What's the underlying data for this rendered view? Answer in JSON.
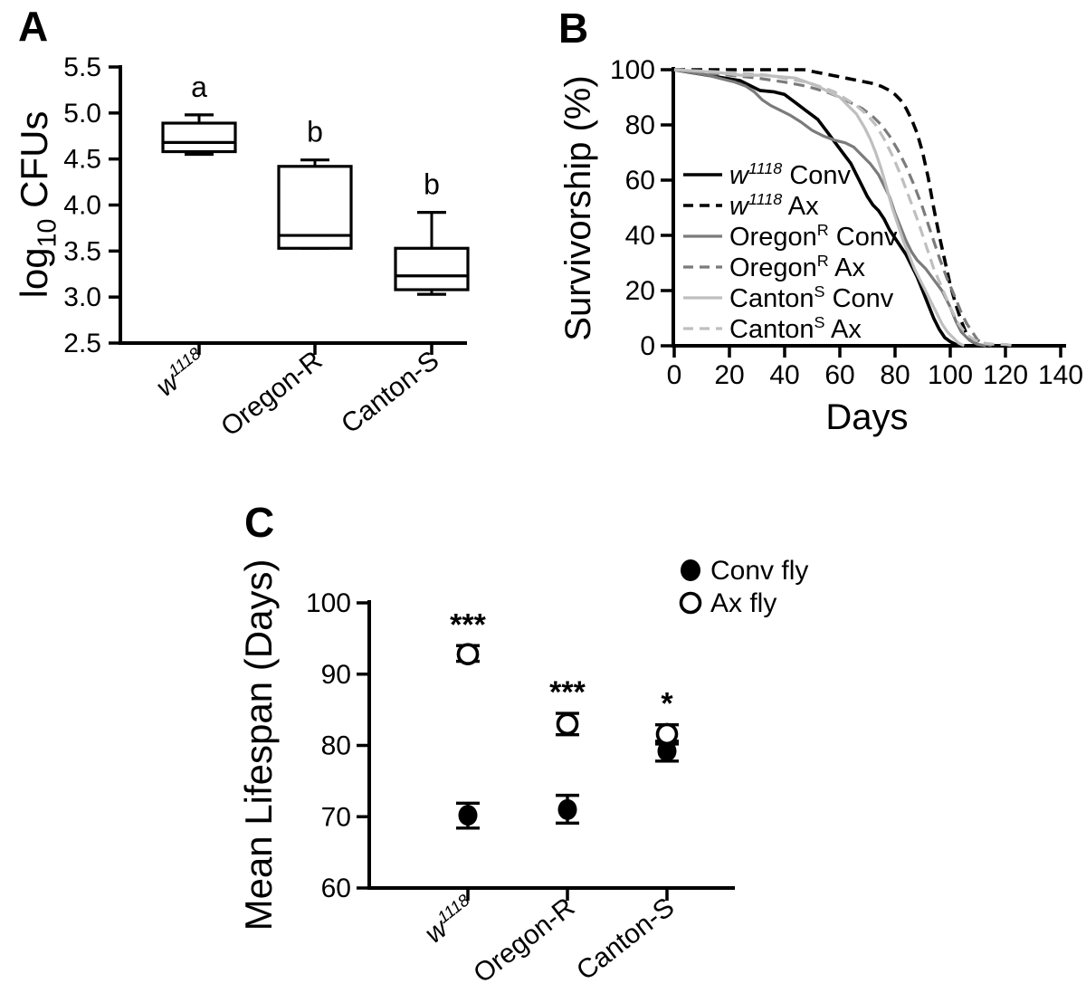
{
  "figure": {
    "background": "#ffffff",
    "panel_labels": {
      "a": "A",
      "b": "B",
      "c": "C"
    }
  },
  "colors": {
    "black": "#000000",
    "dark_gray": "#7b7b7b",
    "light_gray": "#bfbfbf"
  },
  "strains": [
    {
      "name": "w1118",
      "parts": [
        {
          "t": "w",
          "i": true
        },
        {
          "t": "1118",
          "i": true,
          "sup": true
        }
      ]
    },
    {
      "name": "Oregon-R",
      "parts": [
        {
          "t": "Oregon-R"
        }
      ]
    },
    {
      "name": "Canton-S",
      "parts": [
        {
          "t": "Canton-S"
        }
      ]
    }
  ],
  "chart_data": [
    {
      "id": "panel-a",
      "type": "box",
      "ylabel_parts": [
        {
          "t": "log"
        },
        {
          "t": "10",
          "sub": true
        },
        {
          "t": " CFUs"
        }
      ],
      "ylim": [
        2.5,
        5.5
      ],
      "yticks": [
        5.5,
        5.0,
        4.5,
        4.0,
        3.5,
        3.0,
        2.5
      ],
      "grid": false,
      "boxes": [
        {
          "strain": 0,
          "low": 4.55,
          "q1": 4.58,
          "median": 4.68,
          "q3": 4.89,
          "high": 4.98,
          "sig": "a"
        },
        {
          "strain": 1,
          "low": 3.53,
          "q1": 3.53,
          "median": 3.67,
          "q3": 4.42,
          "high": 4.49,
          "sig": "b"
        },
        {
          "strain": 2,
          "low": 3.03,
          "q1": 3.08,
          "median": 3.23,
          "q3": 3.53,
          "high": 3.92,
          "sig": "b"
        }
      ]
    },
    {
      "id": "panel-b",
      "type": "line",
      "ylabel": "Survivorship (%)",
      "xlabel": "Days",
      "xlim": [
        0,
        140
      ],
      "xticks": [
        0,
        20,
        40,
        60,
        80,
        100,
        120,
        140
      ],
      "ylim": [
        0,
        100
      ],
      "yticks": [
        0,
        20,
        40,
        60,
        80,
        100
      ],
      "grid": false,
      "legend_position": "inside-left",
      "series": [
        {
          "name_parts": [
            {
              "t": "w",
              "i": true
            },
            {
              "t": "1118",
              "i": true,
              "sup": true
            },
            {
              "t": " Conv"
            }
          ],
          "color": "black",
          "dash": false,
          "points": [
            [
              0,
              100
            ],
            [
              6,
              99
            ],
            [
              12,
              98
            ],
            [
              18,
              97
            ],
            [
              24,
              96
            ],
            [
              28,
              94
            ],
            [
              31,
              92.5
            ],
            [
              36,
              92
            ],
            [
              40,
              91
            ],
            [
              44,
              88
            ],
            [
              48,
              85
            ],
            [
              52,
              82
            ],
            [
              55,
              78
            ],
            [
              58,
              74
            ],
            [
              61,
              70
            ],
            [
              64,
              66
            ],
            [
              66,
              62
            ],
            [
              68,
              58
            ],
            [
              70,
              54
            ],
            [
              72,
              51
            ],
            [
              74,
              49
            ],
            [
              76,
              46
            ],
            [
              78,
              42
            ],
            [
              80,
              39
            ],
            [
              82,
              36
            ],
            [
              84,
              33
            ],
            [
              86,
              29
            ],
            [
              88,
              25
            ],
            [
              90,
              20
            ],
            [
              92,
              15
            ],
            [
              94,
              10
            ],
            [
              96,
              6
            ],
            [
              98,
              3
            ],
            [
              100,
              1.5
            ],
            [
              102,
              0.5
            ],
            [
              104,
              0
            ]
          ]
        },
        {
          "name_parts": [
            {
              "t": "w",
              "i": true
            },
            {
              "t": "1118",
              "i": true,
              "sup": true
            },
            {
              "t": " Ax"
            }
          ],
          "color": "black",
          "dash": true,
          "points": [
            [
              0,
              100
            ],
            [
              10,
              100
            ],
            [
              20,
              100
            ],
            [
              30,
              100
            ],
            [
              40,
              100
            ],
            [
              47,
              100
            ],
            [
              52,
              99
            ],
            [
              57,
              98
            ],
            [
              62,
              97
            ],
            [
              67,
              96
            ],
            [
              72,
              95
            ],
            [
              75,
              94
            ],
            [
              78,
              92.5
            ],
            [
              80,
              91
            ],
            [
              82,
              89
            ],
            [
              84,
              86
            ],
            [
              86,
              82
            ],
            [
              88,
              77
            ],
            [
              90,
              70
            ],
            [
              92,
              61
            ],
            [
              94,
              50
            ],
            [
              96,
              40
            ],
            [
              98,
              31
            ],
            [
              100,
              22
            ],
            [
              102,
              15
            ],
            [
              104,
              9
            ],
            [
              106,
              4
            ],
            [
              108,
              1.5
            ],
            [
              110,
              0.5
            ],
            [
              112,
              0
            ]
          ]
        },
        {
          "name_parts": [
            {
              "t": "Oregon"
            },
            {
              "t": "R",
              "sup": true
            },
            {
              "t": " Conv"
            }
          ],
          "color": "dark_gray",
          "dash": false,
          "points": [
            [
              0,
              100
            ],
            [
              6,
              99
            ],
            [
              12,
              98
            ],
            [
              18,
              96.5
            ],
            [
              22,
              95.5
            ],
            [
              26,
              94
            ],
            [
              29,
              92
            ],
            [
              32,
              89
            ],
            [
              35,
              87
            ],
            [
              38,
              85.5
            ],
            [
              42,
              83.5
            ],
            [
              46,
              81
            ],
            [
              50,
              78
            ],
            [
              54,
              76
            ],
            [
              58,
              74.5
            ],
            [
              62,
              73.5
            ],
            [
              65,
              72
            ],
            [
              68,
              69
            ],
            [
              71,
              66
            ],
            [
              74,
              62
            ],
            [
              76,
              58
            ],
            [
              78,
              54
            ],
            [
              80,
              48
            ],
            [
              82,
              43
            ],
            [
              84,
              38
            ],
            [
              86,
              34
            ],
            [
              88,
              31
            ],
            [
              91,
              28
            ],
            [
              94,
              24
            ],
            [
              97,
              20
            ],
            [
              100,
              14
            ],
            [
              102,
              9
            ],
            [
              104,
              5
            ],
            [
              107,
              2
            ],
            [
              110,
              0.5
            ],
            [
              113,
              0
            ]
          ]
        },
        {
          "name_parts": [
            {
              "t": "Oregon"
            },
            {
              "t": "R",
              "sup": true
            },
            {
              "t": " Ax"
            }
          ],
          "color": "dark_gray",
          "dash": true,
          "points": [
            [
              0,
              100
            ],
            [
              10,
              99
            ],
            [
              20,
              98
            ],
            [
              30,
              97
            ],
            [
              40,
              95.5
            ],
            [
              48,
              94
            ],
            [
              55,
              92
            ],
            [
              60,
              90
            ],
            [
              64,
              88
            ],
            [
              68,
              86
            ],
            [
              72,
              83
            ],
            [
              75,
              80
            ],
            [
              78,
              76
            ],
            [
              81,
              71
            ],
            [
              84,
              65
            ],
            [
              87,
              58
            ],
            [
              90,
              50
            ],
            [
              93,
              41
            ],
            [
              96,
              32
            ],
            [
              99,
              24
            ],
            [
              102,
              17
            ],
            [
              104,
              12
            ],
            [
              106,
              8
            ],
            [
              108,
              5
            ],
            [
              110,
              2
            ],
            [
              113,
              0.5
            ],
            [
              115,
              0
            ]
          ]
        },
        {
          "name_parts": [
            {
              "t": "Canton"
            },
            {
              "t": "S",
              "sup": true
            },
            {
              "t": " Conv"
            }
          ],
          "color": "light_gray",
          "dash": false,
          "points": [
            [
              0,
              100
            ],
            [
              8,
              99.5
            ],
            [
              16,
              99
            ],
            [
              24,
              98
            ],
            [
              32,
              98
            ],
            [
              38,
              97.5
            ],
            [
              44,
              97
            ],
            [
              48,
              95.5
            ],
            [
              52,
              94
            ],
            [
              56,
              92
            ],
            [
              60,
              90
            ],
            [
              63,
              87
            ],
            [
              66,
              84
            ],
            [
              69,
              79
            ],
            [
              71,
              75
            ],
            [
              73,
              70
            ],
            [
              75,
              64
            ],
            [
              77,
              57
            ],
            [
              79,
              50
            ],
            [
              81,
              44
            ],
            [
              83,
              38
            ],
            [
              85,
              33
            ],
            [
              87,
              28
            ],
            [
              89,
              24
            ],
            [
              91,
              20
            ],
            [
              93,
              16
            ],
            [
              95,
              12
            ],
            [
              97,
              8
            ],
            [
              99,
              5
            ],
            [
              101,
              3
            ],
            [
              103,
              1
            ],
            [
              105,
              0
            ]
          ]
        },
        {
          "name_parts": [
            {
              "t": "Canton"
            },
            {
              "t": "S",
              "sup": true
            },
            {
              "t": " Ax"
            }
          ],
          "color": "light_gray",
          "dash": true,
          "points": [
            [
              0,
              100
            ],
            [
              10,
              99.5
            ],
            [
              20,
              99
            ],
            [
              28,
              98.5
            ],
            [
              34,
              98
            ],
            [
              42,
              96.5
            ],
            [
              48,
              95.5
            ],
            [
              54,
              93.5
            ],
            [
              58,
              92
            ],
            [
              62,
              89.5
            ],
            [
              66,
              87
            ],
            [
              70,
              83.5
            ],
            [
              73,
              80
            ],
            [
              76,
              75
            ],
            [
              79,
              69
            ],
            [
              82,
              62
            ],
            [
              85,
              54
            ],
            [
              88,
              46
            ],
            [
              91,
              37
            ],
            [
              94,
              28
            ],
            [
              97,
              21
            ],
            [
              100,
              14
            ],
            [
              103,
              8
            ],
            [
              106,
              4
            ],
            [
              109,
              2
            ],
            [
              112,
              1
            ],
            [
              116,
              0.5
            ],
            [
              120,
              0.5
            ],
            [
              123,
              0
            ]
          ]
        }
      ]
    },
    {
      "id": "panel-c",
      "type": "scatter",
      "ylabel": "Mean Lifespan (Days)",
      "ylim": [
        60,
        100
      ],
      "yticks": [
        100,
        90,
        80,
        70,
        60
      ],
      "grid": false,
      "legend": [
        {
          "label": "Conv fly",
          "marker": "filled-circle"
        },
        {
          "label": "Ax fly",
          "marker": "open-circle"
        }
      ],
      "groups": [
        {
          "strain": 0,
          "conv": {
            "mean": 70.2,
            "lo": 68.4,
            "hi": 71.9
          },
          "ax": {
            "mean": 92.8,
            "lo": 91.8,
            "hi": 94.0
          },
          "sig": "***"
        },
        {
          "strain": 1,
          "conv": {
            "mean": 71.0,
            "lo": 69.1,
            "hi": 73.0
          },
          "ax": {
            "mean": 83.0,
            "lo": 81.5,
            "hi": 84.5
          },
          "sig": "***"
        },
        {
          "strain": 2,
          "conv": {
            "mean": 79.2,
            "lo": 77.8,
            "hi": 80.6
          },
          "ax": {
            "mean": 81.6,
            "lo": 80.2,
            "hi": 82.9
          },
          "sig": "*"
        }
      ]
    }
  ]
}
